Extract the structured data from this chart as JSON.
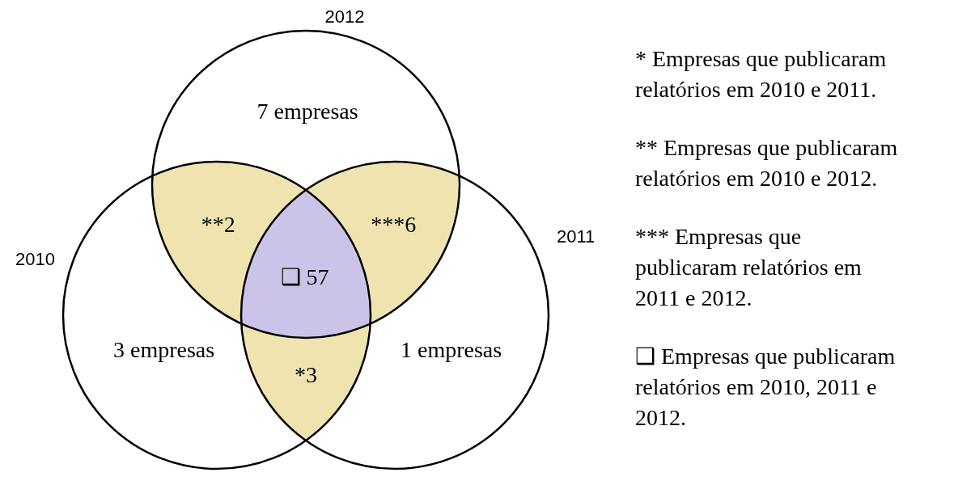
{
  "chart_data": {
    "type": "other",
    "categories": [
      "empresas",
      "**",
      "***",
      "❑",
      "empresas",
      "*",
      "empresas"
    ],
    "values": [
      7,
      2,
      6,
      57,
      3,
      3,
      1
    ],
    "data_labels": true,
    "colors": [
      "#ffffff",
      "#efe4b0",
      "#efe4b0",
      "#ccc4e8",
      "#ffffff",
      "#efe4b0",
      "#ffffff"
    ],
    "annotations": [
      "2012",
      "2010",
      "2011",
      "* Empresas que publicaram relatórios em 2010 e 2011.",
      "** Empresas que publicaram relatórios em 2010 e 2012.",
      "*** Empresas que publicaram relatórios em 2011 e 2012.",
      "❑ Empresas que publicaram relatórios em 2010, 2011 e 2012."
    ]
  }
}
